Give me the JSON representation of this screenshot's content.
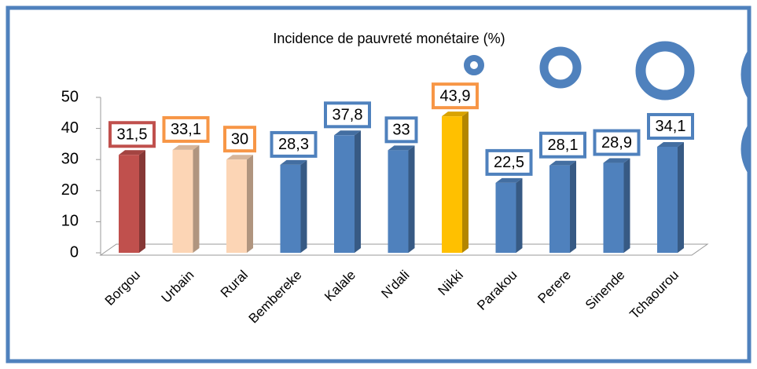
{
  "chart_data": {
    "type": "bar",
    "title": "Incidence de pauvreté monétaire (%)",
    "categories": [
      "Borgou",
      "Urbain",
      "Rural",
      "Bembereke",
      "Kalale",
      "N'dali",
      "Nikki",
      "Parakou",
      "Perere",
      "Sinende",
      "Tchaourou"
    ],
    "values": [
      31.5,
      33.1,
      30,
      28.3,
      37.8,
      33,
      43.9,
      22.5,
      28.1,
      28.9,
      34.1
    ],
    "value_labels": [
      "31,5",
      "33,1",
      "30",
      "28,3",
      "37,8",
      "33",
      "43,9",
      "22,5",
      "28,1",
      "28,9",
      "34,1"
    ],
    "colors": [
      "#c0504d",
      "#fcd5b5",
      "#fcd5b5",
      "#4f81bd",
      "#4f81bd",
      "#4f81bd",
      "#ffc000",
      "#4f81bd",
      "#4f81bd",
      "#4f81bd",
      "#4f81bd"
    ],
    "label_colors": [
      "#c0504d",
      "#f79646",
      "#f79646",
      "#4f81bd",
      "#4f81bd",
      "#4f81bd",
      "#f79646",
      "#4f81bd",
      "#4f81bd",
      "#4f81bd",
      "#4f81bd"
    ],
    "ylim": [
      0,
      50
    ],
    "yticks": [
      0,
      10,
      20,
      30,
      40,
      50
    ]
  }
}
